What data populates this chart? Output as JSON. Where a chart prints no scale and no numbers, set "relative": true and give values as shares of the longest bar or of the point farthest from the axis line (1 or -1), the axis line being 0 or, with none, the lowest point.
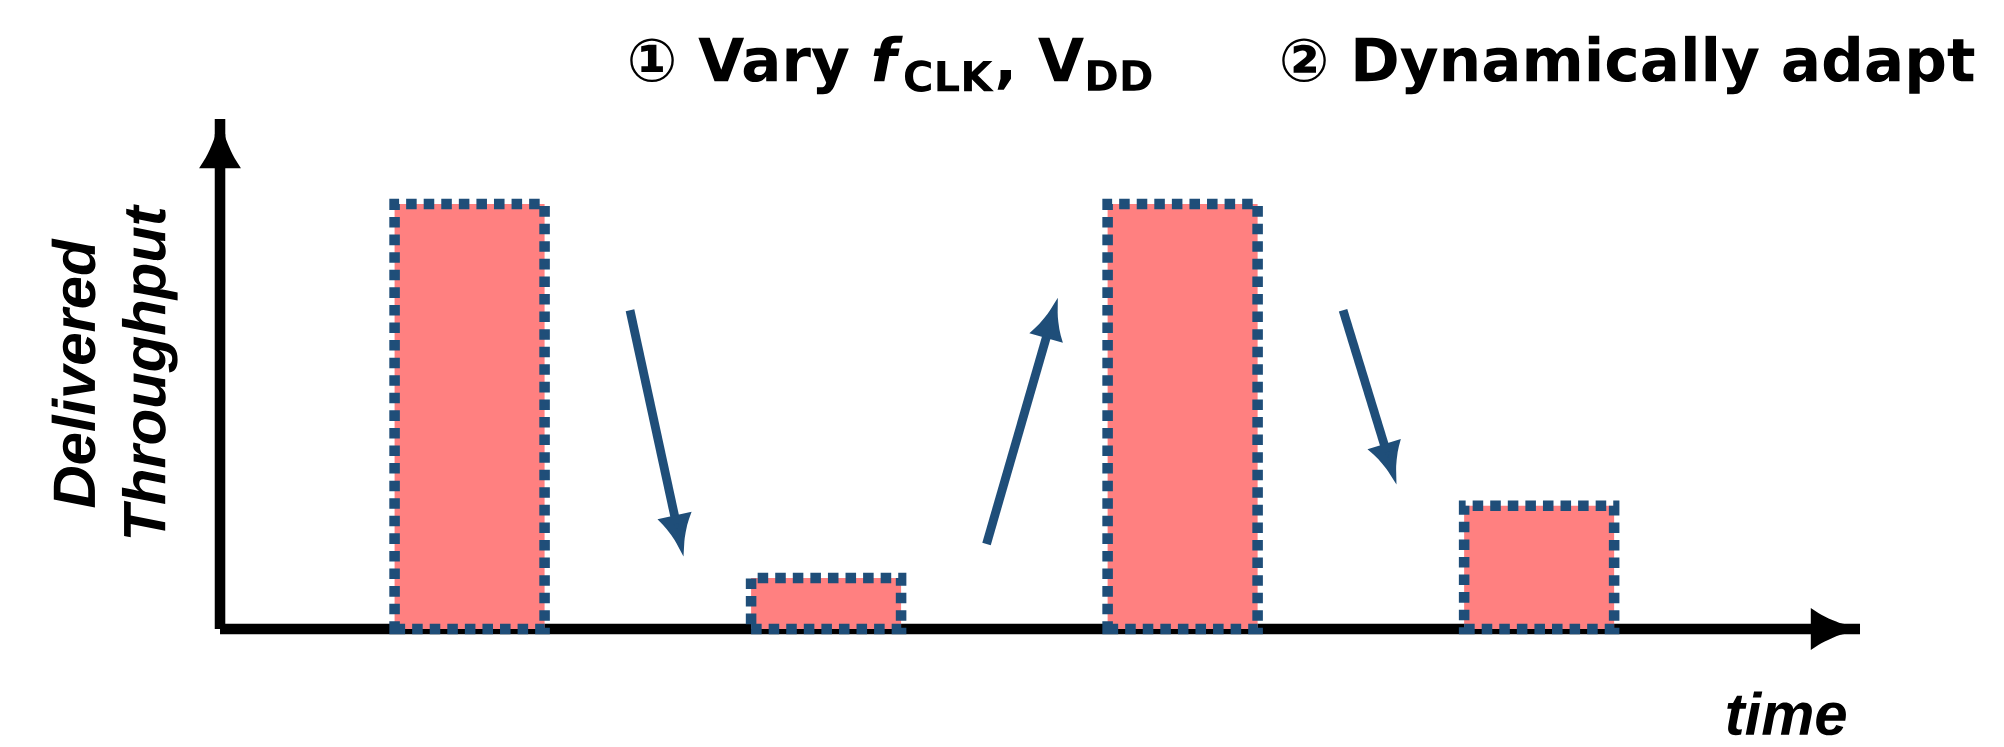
{
  "chart_data": {
    "type": "bar",
    "relative": true,
    "categories": [
      null,
      null,
      null,
      null
    ],
    "values": [
      1,
      0.12,
      1,
      0.29
    ],
    "color": "#ff8080",
    "xlabel": "time",
    "ylabel": "Delivered Throughput",
    "annotations": [
      "① Vary *f*$_{CLK}$, V$_{DD}$",
      "② Dynamically adapt"
    ]
  }
}
